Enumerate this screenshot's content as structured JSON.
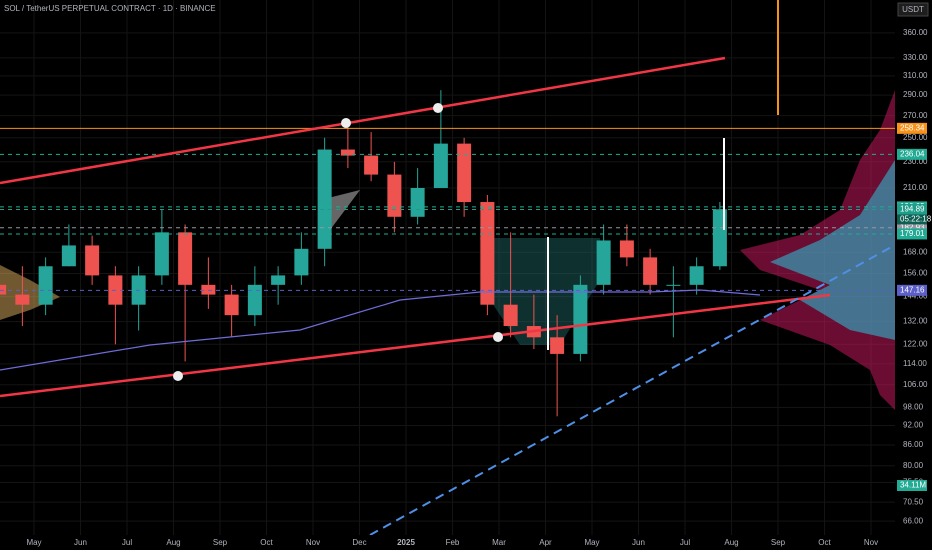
{
  "chart_data": {
    "type": "candlestick",
    "title": "SOL / TetherUS PERPETUAL CONTRACT · 1D · BINANCE",
    "currency": "USDT",
    "countdown": "05:22:18",
    "volume_label": "34.11M",
    "log_scale": true,
    "grid": true,
    "up_color": "#26a69a",
    "down_color": "#ef5350",
    "categories": [
      null,
      null,
      "May",
      null,
      "Jun",
      null,
      "Jul",
      null,
      "Aug",
      null,
      "Sep",
      null,
      "Oct",
      null,
      "Nov",
      null,
      "Dec",
      null,
      "2025",
      null,
      "Feb",
      null,
      "Mar",
      null,
      "Apr",
      null,
      "May",
      null,
      "Jun",
      null,
      "Jul",
      null,
      "Aug",
      null,
      "Sep",
      null,
      "Oct",
      null,
      "Nov",
      null
    ],
    "open": [
      150,
      145,
      140,
      160,
      172,
      155,
      140,
      155,
      180,
      150,
      145,
      135,
      150,
      155,
      170,
      240,
      235,
      220,
      190,
      210,
      245,
      200,
      140,
      130,
      125,
      118,
      150,
      175,
      165,
      150,
      150,
      160,
      null,
      null,
      null,
      null,
      null,
      null,
      null,
      null
    ],
    "high": [
      160,
      160,
      165,
      185,
      178,
      160,
      160,
      195,
      185,
      165,
      150,
      160,
      160,
      180,
      250,
      265,
      255,
      230,
      225,
      295,
      250,
      205,
      180,
      145,
      135,
      155,
      185,
      185,
      170,
      160,
      165,
      200,
      null,
      null,
      null,
      null,
      null,
      null,
      null,
      null
    ],
    "low": [
      135,
      130,
      135,
      160,
      150,
      122,
      128,
      150,
      115,
      138,
      125,
      130,
      140,
      150,
      160,
      225,
      215,
      180,
      185,
      210,
      190,
      135,
      125,
      120,
      95,
      115,
      145,
      160,
      145,
      125,
      145,
      158,
      null,
      null,
      null,
      null,
      null,
      null,
      null,
      null
    ],
    "close": [
      145,
      140,
      160,
      172,
      155,
      140,
      155,
      180,
      150,
      145,
      135,
      150,
      155,
      170,
      240,
      235,
      220,
      190,
      210,
      245,
      200,
      140,
      130,
      125,
      118,
      150,
      175,
      165,
      150,
      150,
      160,
      195,
      null,
      null,
      null,
      null,
      null,
      null,
      null,
      null
    ],
    "ylim": [
      62.9,
      403.5
    ],
    "yticks": [
      {
        "value": 360,
        "label": "360.00"
      },
      {
        "value": 330,
        "label": "330.00"
      },
      {
        "value": 310,
        "label": "310.00"
      },
      {
        "value": 290,
        "label": "290.00"
      },
      {
        "value": 270,
        "label": "270.00"
      },
      {
        "value": 250,
        "label": "250.00"
      },
      {
        "value": 230,
        "label": "230.00"
      },
      {
        "value": 210,
        "label": "210.00"
      },
      {
        "value": 168,
        "label": "168.00"
      },
      {
        "value": 156,
        "label": "156.00"
      },
      {
        "value": 144,
        "label": "144.00"
      },
      {
        "value": 132,
        "label": "132.00"
      },
      {
        "value": 122,
        "label": "122.00"
      },
      {
        "value": 114,
        "label": "114.00"
      },
      {
        "value": 106,
        "label": "106.00"
      },
      {
        "value": 98,
        "label": "98.00"
      },
      {
        "value": 92,
        "label": "92.00"
      },
      {
        "value": 86,
        "label": "86.00"
      },
      {
        "value": 80,
        "label": "80.00"
      },
      {
        "value": 75.5,
        "label": "75.50"
      },
      {
        "value": 70.5,
        "label": "70.50"
      },
      {
        "value": 66,
        "label": "66.00"
      }
    ],
    "price_tags": [
      {
        "value": 258.34,
        "color": "#f7931a"
      },
      {
        "value": 236.04,
        "color": "#22ab94"
      },
      {
        "value": 196.63,
        "color": "#22ab94"
      },
      {
        "value": 194.89,
        "color": "#1e9e8a"
      },
      {
        "value": 182.93,
        "color": "#9598a1"
      },
      {
        "value": 179.01,
        "color": "#22ab94"
      },
      {
        "value": 147.16,
        "color": "#5b5fc7"
      }
    ]
  }
}
